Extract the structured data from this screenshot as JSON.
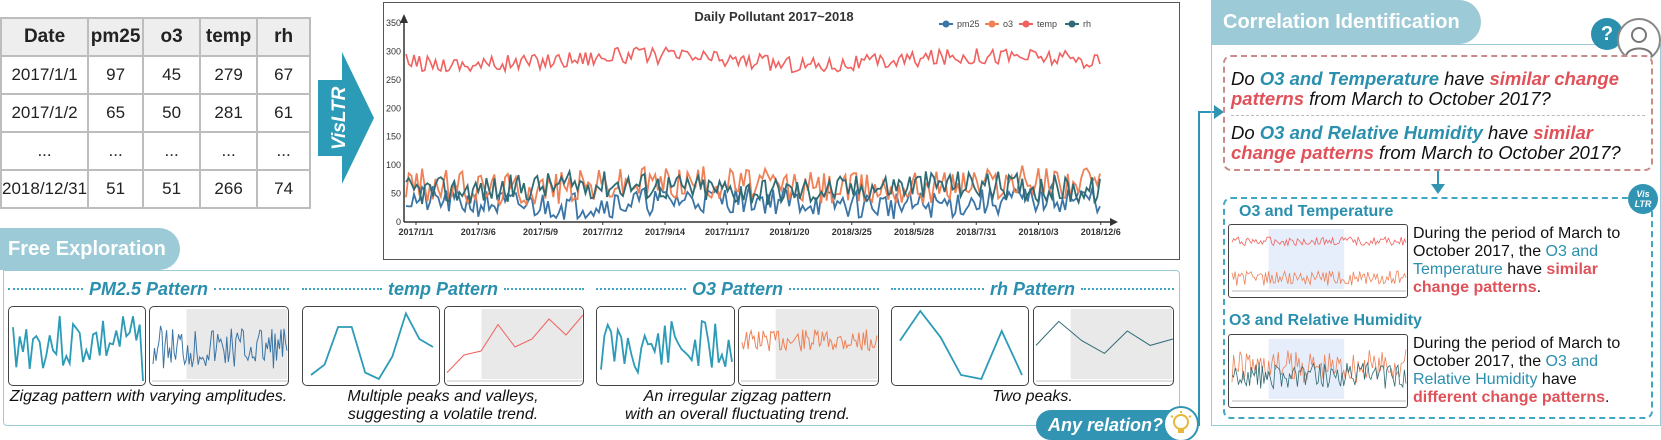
{
  "table": {
    "headers": [
      "Date",
      "pm25",
      "o3",
      "temp",
      "rh"
    ],
    "rows": [
      [
        "2017/1/1",
        "97",
        "45",
        "279",
        "67"
      ],
      [
        "2017/1/2",
        "65",
        "50",
        "281",
        "61"
      ],
      [
        "...",
        "...",
        "...",
        "...",
        "..."
      ],
      [
        "2018/12/31",
        "51",
        "51",
        "266",
        "74"
      ]
    ]
  },
  "arrow_label": "VisLTR",
  "chart_data": {
    "type": "line",
    "title": "Daily Pollutant 2017~2018",
    "xlabel": "",
    "ylabel": "",
    "ylim": [
      0,
      350
    ],
    "yticks": [
      "0",
      "50",
      "100",
      "150",
      "200",
      "250",
      "300",
      "350"
    ],
    "x_tick_labels": [
      "2017/1/1",
      "2017/3/6",
      "2017/5/9",
      "2017/7/12",
      "2017/9/14",
      "2017/11/17",
      "2018/1/20",
      "2018/3/25",
      "2018/5/28",
      "2018/7/31",
      "2018/10/3",
      "2018/12/6"
    ],
    "legend_position": "top-right",
    "series": [
      {
        "name": "pm25",
        "color": "#3b75a6",
        "approx_level": 35,
        "approx_amplitude": 25
      },
      {
        "name": "o3",
        "color": "#ee8156",
        "approx_level": 65,
        "approx_amplitude": 30
      },
      {
        "name": "temp",
        "color": "#f0615f",
        "approx_level": 285,
        "approx_amplitude": 15
      },
      {
        "name": "rh",
        "color": "#2f6b74",
        "approx_level": 60,
        "approx_amplitude": 25
      }
    ]
  },
  "free_exploration": {
    "title": "Free Exploration",
    "patterns": [
      {
        "title": "PM2.5 Pattern",
        "desc": [
          "Zigzag pattern with varying amplitudes."
        ],
        "color": "#2b9bb8"
      },
      {
        "title": "temp Pattern",
        "desc": [
          "Multiple peaks and valleys,",
          "suggesting a volatile trend."
        ],
        "color": "#2b9bb8"
      },
      {
        "title": "O3 Pattern",
        "desc": [
          "An irregular zigzag pattern",
          "with an overall fluctuating trend."
        ],
        "color": "#2b9bb8"
      },
      {
        "title": "rh Pattern",
        "desc": [
          "Two peaks."
        ],
        "color": "#2b9bb8"
      }
    ],
    "any_relation": "Any relation?"
  },
  "correlation": {
    "title": "Correlation Identification",
    "help": "?",
    "q1": {
      "pre": "Do ",
      "subject": "O3 and Temperature",
      "mid": " have ",
      "claim": "similar change patterns",
      "post": " from March to October 2017?"
    },
    "q2": {
      "pre": "Do ",
      "subject": "O3 and Relative Humidity",
      "mid": " have ",
      "claim": "similar change patterns",
      "post": " from March to October 2017?"
    },
    "badge_line1": "Vis",
    "badge_line2": "LTR",
    "a1": {
      "title": "O3 and Temperature",
      "pre": "During the period of March to October 2017, the ",
      "subject": "O3 and Temperature",
      "mid": " have ",
      "claim": "similar change patterns",
      "post": "."
    },
    "a2": {
      "title": "O3 and Relative Humidity",
      "pre": "During the period of March to October 2017, the ",
      "subject": "O3 and Relative Humidity",
      "mid": " have ",
      "claim": "different change patterns",
      "post": "."
    }
  },
  "colors": {
    "accent": "#2b8fae",
    "panel": "#9ccad6",
    "highlight_red": "#e0525a"
  }
}
